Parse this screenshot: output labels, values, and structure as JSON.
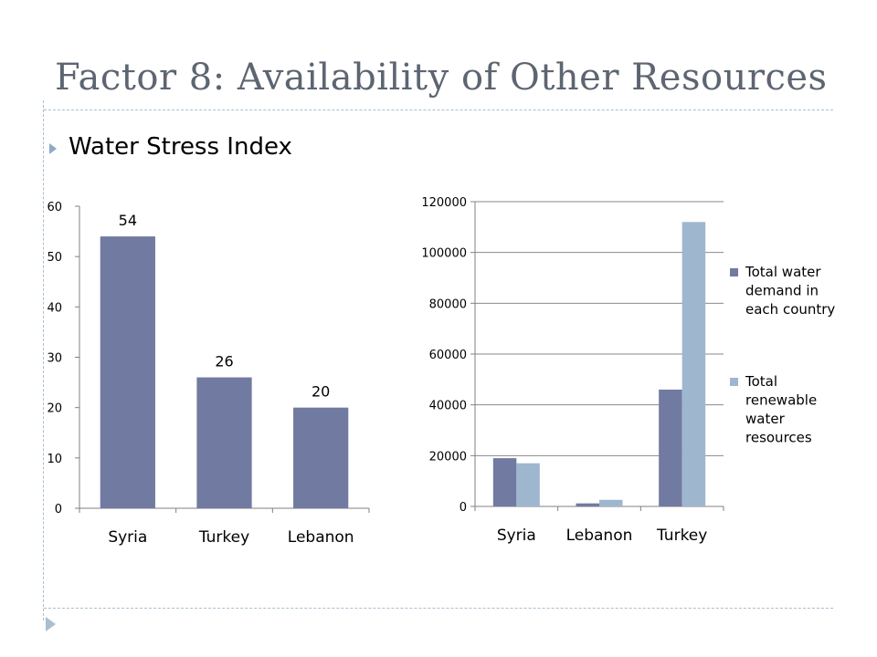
{
  "slide": {
    "title": "Factor 8: Availability of Other Resources",
    "bullet": "Water Stress Index"
  },
  "colors": {
    "dark": "#717aa0",
    "light": "#9fb6cf",
    "axis": "#808080",
    "title": "#5d6571",
    "rule": "#a9bfd0"
  },
  "chart_data": [
    {
      "type": "bar",
      "categories": [
        "Syria",
        "Turkey",
        "Lebanon"
      ],
      "values": [
        54,
        26,
        20
      ],
      "data_labels": [
        "54",
        "26",
        "20"
      ],
      "ylim": [
        0,
        60
      ],
      "yticks": [
        "0",
        "10",
        "20",
        "30",
        "40",
        "50",
        "60"
      ],
      "title": "",
      "xlabel": "",
      "ylabel": ""
    },
    {
      "type": "bar",
      "categories": [
        "Syria",
        "Lebanon",
        "Turkey"
      ],
      "series": [
        {
          "name": "Total water demand in each country",
          "legend_lines": [
            "Total water",
            "demand in",
            "each country"
          ],
          "values": [
            19000,
            1200,
            46000
          ]
        },
        {
          "name": "Total renewable water resources",
          "legend_lines": [
            "Total",
            "renewable",
            "water",
            "resources"
          ],
          "values": [
            17000,
            2600,
            112000
          ]
        }
      ],
      "ylim": [
        0,
        120000
      ],
      "yticks": [
        "0",
        "20000",
        "40000",
        "60000",
        "80000",
        "100000",
        "120000"
      ],
      "legend": "right",
      "grid": true,
      "title": "",
      "xlabel": "",
      "ylabel": ""
    }
  ]
}
